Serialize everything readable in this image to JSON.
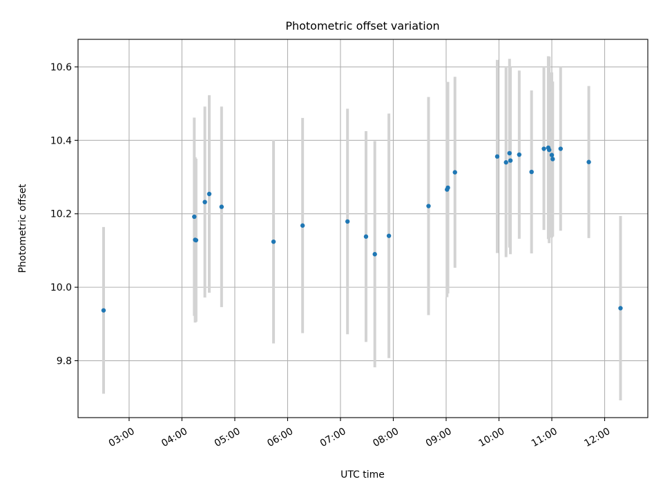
{
  "chart_data": {
    "type": "scatter",
    "title": "Photometric offset variation",
    "xlabel": "UTC time",
    "ylabel": "Photometric offset",
    "grid": true,
    "xlim_hours": [
      2.0333,
      12.8167
    ],
    "ylim": [
      9.645,
      10.675
    ],
    "x_ticks": [
      {
        "t": 3,
        "label": "03:00"
      },
      {
        "t": 4,
        "label": "04:00"
      },
      {
        "t": 5,
        "label": "05:00"
      },
      {
        "t": 6,
        "label": "06:00"
      },
      {
        "t": 7,
        "label": "07:00"
      },
      {
        "t": 8,
        "label": "08:00"
      },
      {
        "t": 9,
        "label": "09:00"
      },
      {
        "t": 10,
        "label": "10:00"
      },
      {
        "t": 11,
        "label": "11:00"
      },
      {
        "t": 12,
        "label": "12:00"
      }
    ],
    "y_ticks": [
      {
        "v": 9.8,
        "label": "9.8"
      },
      {
        "v": 10.0,
        "label": "10.0"
      },
      {
        "v": 10.2,
        "label": "10.2"
      },
      {
        "v": 10.4,
        "label": "10.4"
      },
      {
        "v": 10.6,
        "label": "10.6"
      }
    ],
    "point_color": "#1f77b4",
    "errorbar_color": "#d3d3d3",
    "points": [
      {
        "t": "02:31",
        "y": 9.937,
        "err": 0.227
      },
      {
        "t": "04:14",
        "y": 10.192,
        "err": 0.27
      },
      {
        "t": "04:15",
        "y": 10.129,
        "err": 0.225
      },
      {
        "t": "04:16",
        "y": 10.128,
        "err": 0.222
      },
      {
        "t": "04:26",
        "y": 10.232,
        "err": 0.26
      },
      {
        "t": "04:31",
        "y": 10.254,
        "err": 0.269
      },
      {
        "t": "04:45",
        "y": 10.219,
        "err": 0.273
      },
      {
        "t": "05:44",
        "y": 10.124,
        "err": 0.277
      },
      {
        "t": "06:17",
        "y": 10.168,
        "err": 0.293
      },
      {
        "t": "07:08",
        "y": 10.179,
        "err": 0.307
      },
      {
        "t": "07:29",
        "y": 10.138,
        "err": 0.287
      },
      {
        "t": "07:39",
        "y": 10.09,
        "err": 0.308
      },
      {
        "t": "07:55",
        "y": 10.14,
        "err": 0.333
      },
      {
        "t": "08:40",
        "y": 10.221,
        "err": 0.297
      },
      {
        "t": "09:01",
        "y": 10.266,
        "err": 0.293
      },
      {
        "t": "09:02",
        "y": 10.271,
        "err": 0.288
      },
      {
        "t": "09:10",
        "y": 10.313,
        "err": 0.26
      },
      {
        "t": "09:58",
        "y": 10.356,
        "err": 0.263
      },
      {
        "t": "10:08",
        "y": 10.34,
        "err": 0.258
      },
      {
        "t": "10:12",
        "y": 10.365,
        "err": 0.257
      },
      {
        "t": "10:13",
        "y": 10.345,
        "err": 0.255
      },
      {
        "t": "10:23",
        "y": 10.361,
        "err": 0.229
      },
      {
        "t": "10:37",
        "y": 10.314,
        "err": 0.222
      },
      {
        "t": "10:51",
        "y": 10.377,
        "err": 0.221
      },
      {
        "t": "10:56",
        "y": 10.38,
        "err": 0.249
      },
      {
        "t": "10:57",
        "y": 10.374,
        "err": 0.254
      },
      {
        "t": "11:00",
        "y": 10.36,
        "err": 0.225
      },
      {
        "t": "11:01",
        "y": 10.349,
        "err": 0.211
      },
      {
        "t": "11:10",
        "y": 10.377,
        "err": 0.223
      },
      {
        "t": "11:42",
        "y": 10.341,
        "err": 0.207
      },
      {
        "t": "12:18",
        "y": 9.943,
        "err": 0.251
      }
    ]
  }
}
